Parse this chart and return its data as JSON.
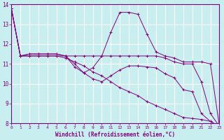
{
  "xlabel": "Windchill (Refroidissement éolien,°C)",
  "background_color": "#c8eef0",
  "line_color": "#800080",
  "grid_color": "#ffffff",
  "xlim": [
    0,
    23
  ],
  "ylim": [
    8,
    14
  ],
  "yticks": [
    8,
    9,
    10,
    11,
    12,
    13,
    14
  ],
  "xticks": [
    0,
    1,
    2,
    3,
    4,
    5,
    6,
    7,
    8,
    9,
    10,
    11,
    12,
    13,
    14,
    15,
    16,
    17,
    18,
    19,
    20,
    21,
    22,
    23
  ],
  "curves": [
    {
      "x": [
        0,
        1,
        2,
        3,
        4,
        5,
        6,
        7,
        8,
        9,
        10,
        11,
        12,
        13,
        14,
        15,
        16,
        17,
        18,
        19,
        20,
        21,
        22,
        23
      ],
      "y": [
        13.8,
        11.4,
        11.5,
        11.5,
        11.5,
        11.5,
        11.4,
        11.4,
        11.4,
        11.4,
        11.4,
        12.6,
        13.6,
        13.6,
        13.5,
        12.5,
        11.6,
        11.4,
        11.3,
        11.1,
        11.1,
        11.1,
        11.0,
        7.85
      ]
    },
    {
      "x": [
        0,
        1,
        2,
        3,
        4,
        5,
        6,
        7,
        8,
        9,
        10,
        11,
        12,
        13,
        14,
        15,
        16,
        17,
        18,
        19,
        20,
        21,
        22,
        23
      ],
      "y": [
        13.8,
        11.4,
        11.5,
        11.5,
        11.5,
        11.5,
        11.4,
        10.85,
        10.55,
        10.8,
        11.4,
        11.4,
        11.4,
        11.4,
        11.4,
        11.4,
        11.4,
        11.3,
        11.1,
        11.0,
        11.0,
        10.1,
        8.5,
        7.85
      ]
    },
    {
      "x": [
        0,
        1,
        2,
        3,
        4,
        5,
        6,
        7,
        8,
        9,
        10,
        11,
        12,
        13,
        14,
        15,
        16,
        17,
        18,
        19,
        20,
        21,
        22,
        23
      ],
      "y": [
        13.8,
        11.4,
        11.4,
        11.4,
        11.4,
        11.4,
        11.4,
        11.0,
        10.55,
        10.25,
        10.1,
        10.4,
        10.7,
        10.9,
        10.9,
        10.85,
        10.8,
        10.5,
        10.3,
        9.7,
        9.6,
        8.5,
        8.1,
        7.85
      ]
    },
    {
      "x": [
        0,
        1,
        2,
        3,
        4,
        5,
        6,
        7,
        8,
        9,
        10,
        11,
        12,
        13,
        14,
        15,
        16,
        17,
        18,
        19,
        20,
        21,
        22,
        23
      ],
      "y": [
        13.8,
        11.4,
        11.4,
        11.4,
        11.4,
        11.4,
        11.3,
        11.1,
        10.9,
        10.6,
        10.4,
        10.1,
        9.8,
        9.6,
        9.4,
        9.1,
        8.9,
        8.7,
        8.5,
        8.3,
        8.25,
        8.2,
        8.1,
        7.85
      ]
    }
  ]
}
